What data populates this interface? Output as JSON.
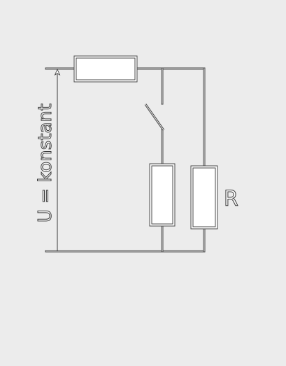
{
  "diagram": {
    "voltage_label": "U = konstant",
    "resistor_label": "R",
    "colors": {
      "background": "#ececec",
      "wire": "#4a4a4a",
      "component_fill": "#ffffff",
      "text_fill": "#ffffff",
      "text_stroke": "#3a3a3a"
    }
  }
}
